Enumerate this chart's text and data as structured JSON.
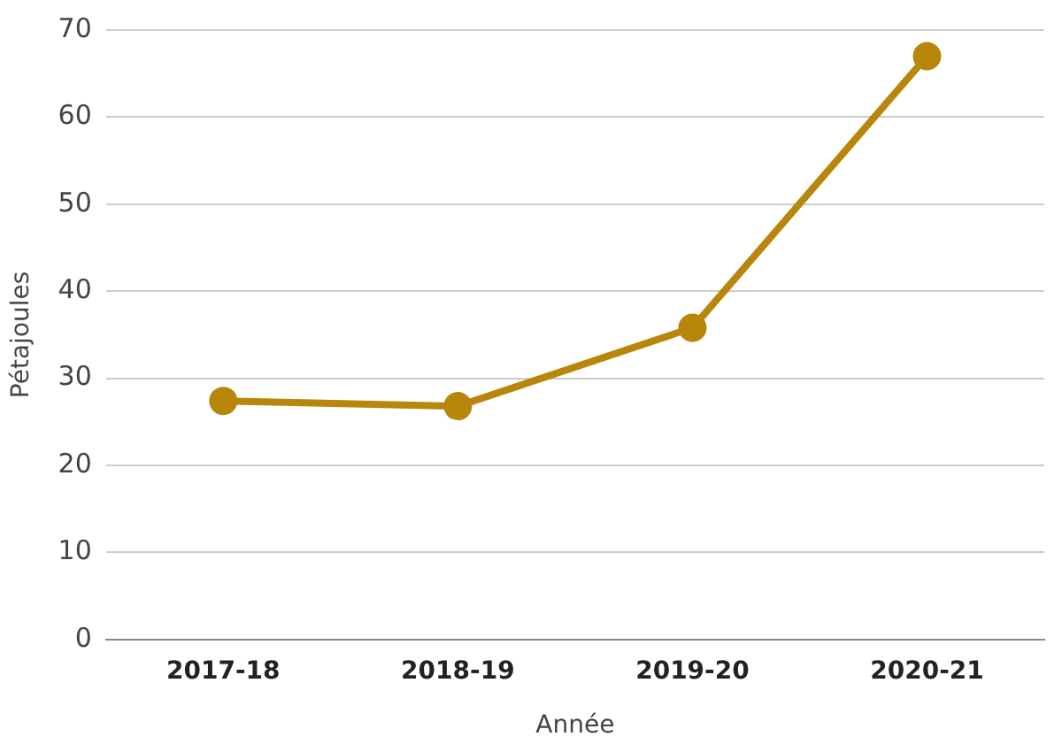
{
  "chart_data": {
    "type": "line",
    "xlabel": "Année",
    "ylabel": "Pétajoules",
    "categories": [
      "2017-18",
      "2018-19",
      "2019-20",
      "2020-21"
    ],
    "series": [
      {
        "color": "#b8860b",
        "values": [
          27.4,
          26.8,
          35.8,
          67.0
        ]
      }
    ],
    "ylim": [
      0,
      70
    ],
    "yticks": [
      0,
      10,
      20,
      30,
      40,
      50,
      60,
      70
    ],
    "grid": "y",
    "legend": false,
    "marker": "circle",
    "line_style": "solid"
  }
}
